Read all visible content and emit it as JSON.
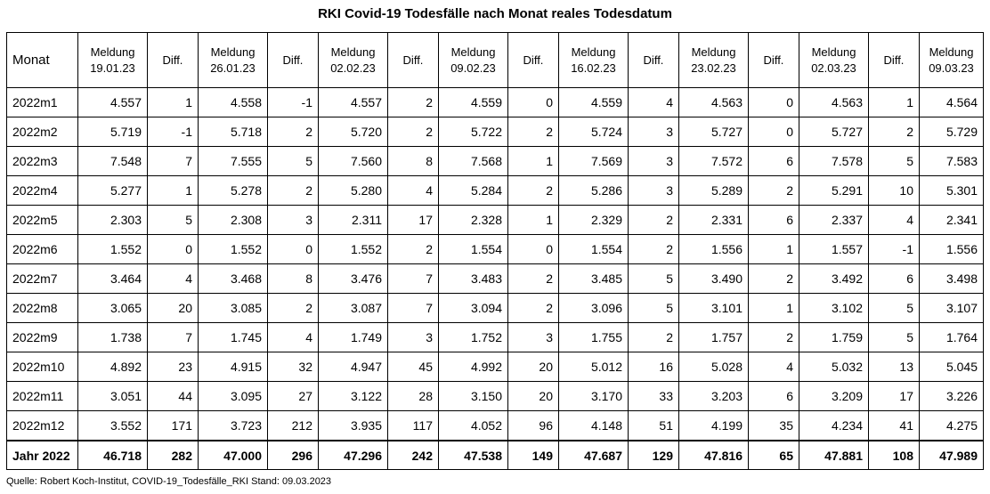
{
  "title": "RKI Covid-19 Todesfälle nach Monat reales Todesdatum",
  "header": {
    "monat": "Monat",
    "columns": [
      {
        "type": "meldung",
        "line1": "Meldung",
        "line2": "19.01.23"
      },
      {
        "type": "diff",
        "label": "Diff."
      },
      {
        "type": "meldung",
        "line1": "Meldung",
        "line2": "26.01.23"
      },
      {
        "type": "diff",
        "label": "Diff."
      },
      {
        "type": "meldung",
        "line1": "Meldung",
        "line2": "02.02.23"
      },
      {
        "type": "diff",
        "label": "Diff."
      },
      {
        "type": "meldung",
        "line1": "Meldung",
        "line2": "09.02.23"
      },
      {
        "type": "diff",
        "label": "Diff."
      },
      {
        "type": "meldung",
        "line1": "Meldung",
        "line2": "16.02.23"
      },
      {
        "type": "diff",
        "label": "Diff."
      },
      {
        "type": "meldung",
        "line1": "Meldung",
        "line2": "23.02.23"
      },
      {
        "type": "diff",
        "label": "Diff."
      },
      {
        "type": "meldung",
        "line1": "Meldung",
        "line2": "02.03.23"
      },
      {
        "type": "diff",
        "label": "Diff."
      },
      {
        "type": "meldung",
        "line1": "Meldung",
        "line2": "09.03.23"
      }
    ]
  },
  "rows": [
    {
      "monat": "2022m1",
      "values": [
        "4.557",
        "1",
        "4.558",
        "-1",
        "4.557",
        "2",
        "4.559",
        "0",
        "4.559",
        "4",
        "4.563",
        "0",
        "4.563",
        "1",
        "4.564"
      ]
    },
    {
      "monat": "2022m2",
      "values": [
        "5.719",
        "-1",
        "5.718",
        "2",
        "5.720",
        "2",
        "5.722",
        "2",
        "5.724",
        "3",
        "5.727",
        "0",
        "5.727",
        "2",
        "5.729"
      ]
    },
    {
      "monat": "2022m3",
      "values": [
        "7.548",
        "7",
        "7.555",
        "5",
        "7.560",
        "8",
        "7.568",
        "1",
        "7.569",
        "3",
        "7.572",
        "6",
        "7.578",
        "5",
        "7.583"
      ]
    },
    {
      "monat": "2022m4",
      "values": [
        "5.277",
        "1",
        "5.278",
        "2",
        "5.280",
        "4",
        "5.284",
        "2",
        "5.286",
        "3",
        "5.289",
        "2",
        "5.291",
        "10",
        "5.301"
      ]
    },
    {
      "monat": "2022m5",
      "values": [
        "2.303",
        "5",
        "2.308",
        "3",
        "2.311",
        "17",
        "2.328",
        "1",
        "2.329",
        "2",
        "2.331",
        "6",
        "2.337",
        "4",
        "2.341"
      ]
    },
    {
      "monat": "2022m6",
      "values": [
        "1.552",
        "0",
        "1.552",
        "0",
        "1.552",
        "2",
        "1.554",
        "0",
        "1.554",
        "2",
        "1.556",
        "1",
        "1.557",
        "-1",
        "1.556"
      ]
    },
    {
      "monat": "2022m7",
      "values": [
        "3.464",
        "4",
        "3.468",
        "8",
        "3.476",
        "7",
        "3.483",
        "2",
        "3.485",
        "5",
        "3.490",
        "2",
        "3.492",
        "6",
        "3.498"
      ]
    },
    {
      "monat": "2022m8",
      "values": [
        "3.065",
        "20",
        "3.085",
        "2",
        "3.087",
        "7",
        "3.094",
        "2",
        "3.096",
        "5",
        "3.101",
        "1",
        "3.102",
        "5",
        "3.107"
      ]
    },
    {
      "monat": "2022m9",
      "values": [
        "1.738",
        "7",
        "1.745",
        "4",
        "1.749",
        "3",
        "1.752",
        "3",
        "1.755",
        "2",
        "1.757",
        "2",
        "1.759",
        "5",
        "1.764"
      ]
    },
    {
      "monat": "2022m10",
      "values": [
        "4.892",
        "23",
        "4.915",
        "32",
        "4.947",
        "45",
        "4.992",
        "20",
        "5.012",
        "16",
        "5.028",
        "4",
        "5.032",
        "13",
        "5.045"
      ]
    },
    {
      "monat": "2022m11",
      "values": [
        "3.051",
        "44",
        "3.095",
        "27",
        "3.122",
        "28",
        "3.150",
        "20",
        "3.170",
        "33",
        "3.203",
        "6",
        "3.209",
        "17",
        "3.226"
      ]
    },
    {
      "monat": "2022m12",
      "values": [
        "3.552",
        "171",
        "3.723",
        "212",
        "3.935",
        "117",
        "4.052",
        "96",
        "4.148",
        "51",
        "4.199",
        "35",
        "4.234",
        "41",
        "4.275"
      ]
    }
  ],
  "total": {
    "monat": "Jahr 2022",
    "values": [
      "46.718",
      "282",
      "47.000",
      "296",
      "47.296",
      "242",
      "47.538",
      "149",
      "47.687",
      "129",
      "47.816",
      "65",
      "47.881",
      "108",
      "47.989"
    ]
  },
  "source": "Quelle: Robert Koch-Institut, COVID-19_Todesfälle_RKI Stand: 09.03.2023"
}
